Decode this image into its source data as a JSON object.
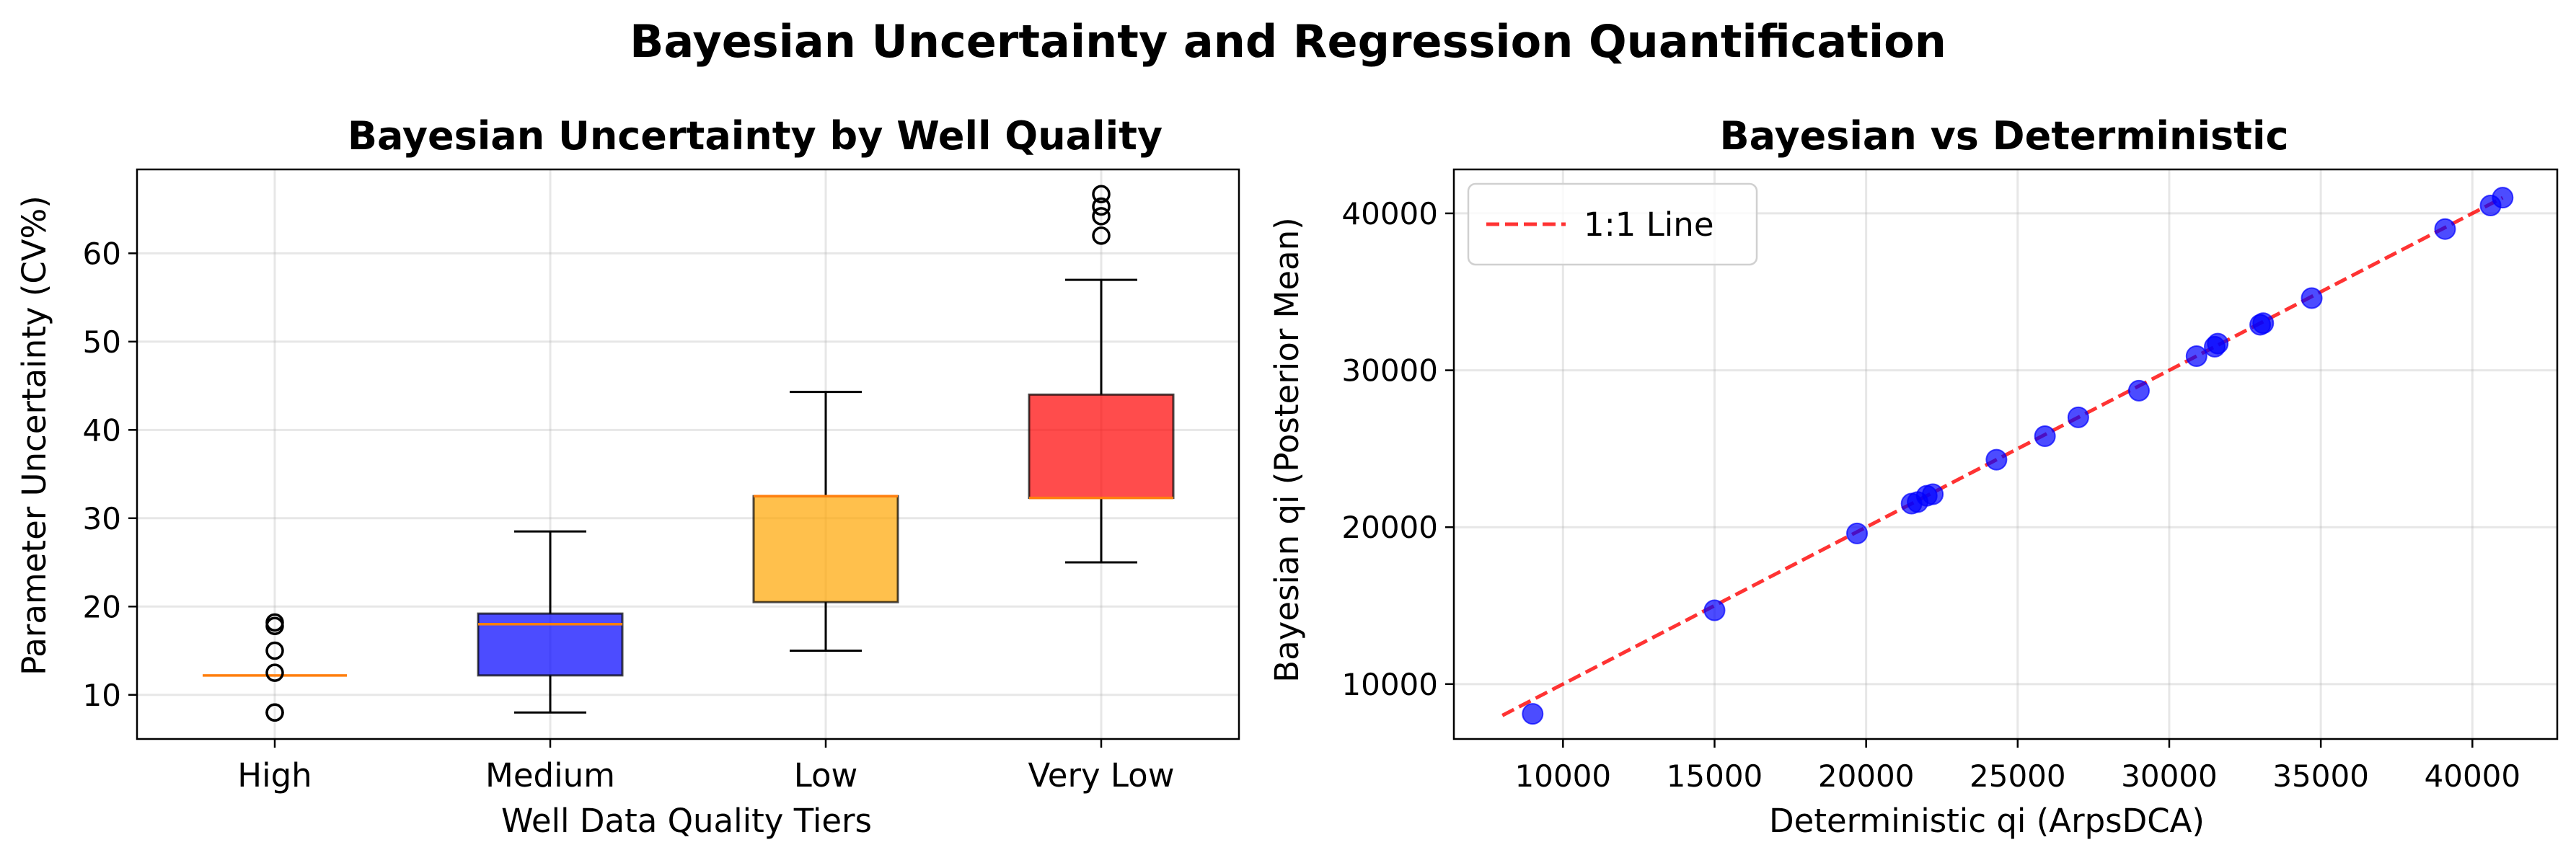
{
  "suptitle": "Bayesian Uncertainty and Regression Quantification",
  "chart_data": [
    {
      "type": "box",
      "title": "Bayesian Uncertainty by Well Quality",
      "xlabel": "Well Data Quality Tiers",
      "ylabel": "Parameter Uncertainty (CV%)",
      "ylim": [
        5,
        69.5
      ],
      "yticks": [
        10,
        20,
        30,
        40,
        50,
        60
      ],
      "grid": true,
      "categories": [
        "High",
        "Medium",
        "Low",
        "Very Low"
      ],
      "boxes": [
        {
          "category": "High",
          "q1": 12.2,
          "median": 12.2,
          "q3": 12.2,
          "whisker_low": 12.2,
          "whisker_high": 12.2,
          "outliers": [
            8,
            8,
            12.5,
            15,
            17.8,
            18.2
          ],
          "color": "#ff7f0e"
        },
        {
          "category": "Medium",
          "q1": 12.2,
          "median": 18,
          "q3": 19.2,
          "whisker_low": 8,
          "whisker_high": 28.5,
          "outliers": [],
          "color": "#0000ff"
        },
        {
          "category": "Low",
          "q1": 20.5,
          "median": 32.5,
          "q3": 32.5,
          "whisker_low": 15,
          "whisker_high": 44.3,
          "outliers": [],
          "color": "#ffa500"
        },
        {
          "category": "Very Low",
          "q1": 32.3,
          "median": 32.3,
          "q3": 44,
          "whisker_low": 25,
          "whisker_high": 57,
          "outliers": [
            62,
            64.2,
            65.3,
            66.7
          ],
          "color": "#ff0000"
        }
      ],
      "median_color": "#ff7f0e"
    },
    {
      "type": "scatter",
      "title": "Bayesian vs Deterministic",
      "xlabel": "Deterministic qi (ArpsDCA)",
      "ylabel": "Bayesian qi (Posterior Mean)",
      "xlim": [
        6400,
        42800
      ],
      "ylim": [
        6500,
        42800
      ],
      "xticks": [
        10000,
        15000,
        20000,
        25000,
        30000,
        35000,
        40000
      ],
      "yticks": [
        10000,
        20000,
        30000,
        40000
      ],
      "grid": true,
      "legend": {
        "position": "top-left",
        "entries": [
          "1:1 Line"
        ]
      },
      "reference_line": {
        "name": "1:1 Line",
        "x": [
          8000,
          41000
        ],
        "y": [
          8000,
          41000
        ],
        "style": "dashed",
        "color": "#ff0000"
      },
      "point_color": "#0000ff",
      "points": [
        {
          "x": 9000,
          "y": 8100
        },
        {
          "x": 15000,
          "y": 14700
        },
        {
          "x": 19700,
          "y": 19600
        },
        {
          "x": 21500,
          "y": 21500
        },
        {
          "x": 21700,
          "y": 21600
        },
        {
          "x": 22000,
          "y": 22000
        },
        {
          "x": 22200,
          "y": 22100
        },
        {
          "x": 24300,
          "y": 24300
        },
        {
          "x": 25900,
          "y": 25800
        },
        {
          "x": 27000,
          "y": 27000
        },
        {
          "x": 29000,
          "y": 28700
        },
        {
          "x": 30900,
          "y": 30900
        },
        {
          "x": 31500,
          "y": 31500
        },
        {
          "x": 31600,
          "y": 31700
        },
        {
          "x": 33000,
          "y": 32900
        },
        {
          "x": 33100,
          "y": 33000
        },
        {
          "x": 34700,
          "y": 34600
        },
        {
          "x": 39100,
          "y": 39000
        },
        {
          "x": 40600,
          "y": 40500
        },
        {
          "x": 41000,
          "y": 41000
        }
      ]
    }
  ]
}
